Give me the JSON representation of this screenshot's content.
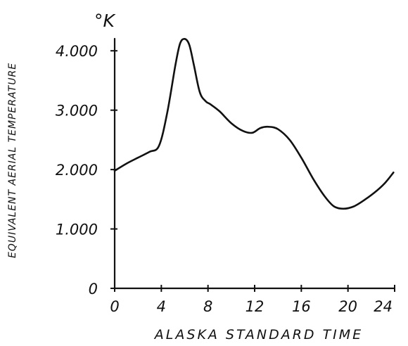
{
  "chart_data": {
    "type": "line",
    "title": "",
    "unit_label": "°K",
    "xlabel": "ALASKA STANDARD TIME",
    "ylabel": "EQUIVALENT AERIAL TEMPERATURE",
    "xlim": [
      0,
      24
    ],
    "ylim": [
      0,
      4.5
    ],
    "x_ticks": [
      0,
      4,
      8,
      12,
      16,
      20,
      24
    ],
    "x_tick_labels": [
      "0",
      "4",
      "8",
      "12",
      "16",
      "20",
      "24"
    ],
    "y_ticks": [
      0,
      1,
      2,
      3,
      4
    ],
    "y_tick_labels": [
      "0",
      "1.000",
      "2.000",
      "3.000",
      "4.000"
    ],
    "grid": false,
    "legend": "none",
    "series": [
      {
        "x": [
          0,
          1,
          2,
          3,
          3.8,
          4.5,
          5.2,
          5.6,
          6.0,
          6.4,
          6.8,
          7.3,
          7.8,
          8.2,
          9,
          10,
          11,
          11.8,
          12.5,
          13.2,
          14,
          15,
          16,
          17,
          18,
          18.8,
          19.6,
          20.5,
          21.5,
          22.5,
          23.2,
          23.9
        ],
        "y": [
          1.98,
          2.1,
          2.2,
          2.3,
          2.4,
          2.95,
          3.75,
          4.12,
          4.2,
          4.1,
          3.75,
          3.3,
          3.15,
          3.1,
          2.98,
          2.78,
          2.65,
          2.62,
          2.7,
          2.72,
          2.68,
          2.5,
          2.2,
          1.85,
          1.55,
          1.38,
          1.34,
          1.38,
          1.5,
          1.65,
          1.78,
          1.95
        ]
      }
    ]
  }
}
